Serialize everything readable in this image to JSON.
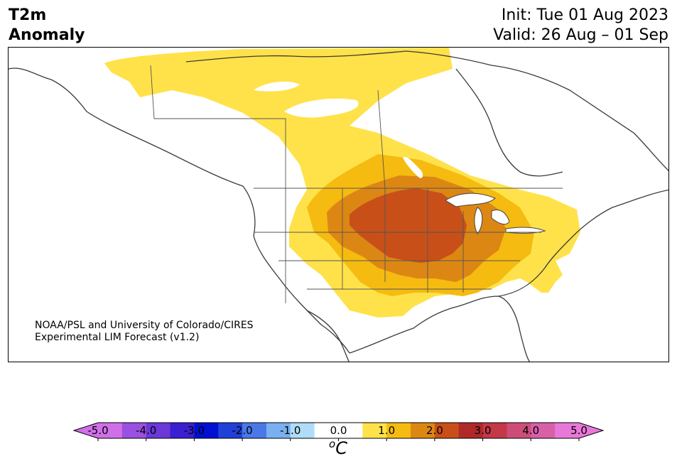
{
  "title": {
    "line1": "T2m",
    "line2": "Anomaly"
  },
  "init": "Init: Tue 01 Aug 2023",
  "valid": "Valid: 26 Aug – 01 Sep",
  "credit": {
    "line1": "NOAA/PSL and University of Colorado/CIRES",
    "line2": "Experimental LIM Forecast (v1.2)"
  },
  "colorbar": {
    "unit": "C",
    "unit_prefix": "o",
    "ticks": [
      "-5.0",
      "-4.0",
      "-3.0",
      "-2.0",
      "-1.0",
      "0.0",
      "1.0",
      "2.0",
      "3.0",
      "4.0",
      "5.0"
    ],
    "colors": [
      "#d070e8",
      "#9a50e0",
      "#6a38d8",
      "#3a20d0",
      "#0010d0",
      "#2040d8",
      "#4a78e8",
      "#78b0f0",
      "#b0dcf8",
      "#ffffff",
      "#ffffff",
      "#ffe24a",
      "#f5bb10",
      "#dc8714",
      "#c85018",
      "#b02828",
      "#c43848",
      "#cc4e78",
      "#d860a8",
      "#e878d8"
    ],
    "under_color": "#d070e8",
    "over_color": "#e878d8"
  },
  "anomaly_levels": {
    "0.5": "#ffe24a",
    "1.0": "#f5bb10",
    "1.5": "#dc8714",
    "2.0": "#c85018"
  }
}
